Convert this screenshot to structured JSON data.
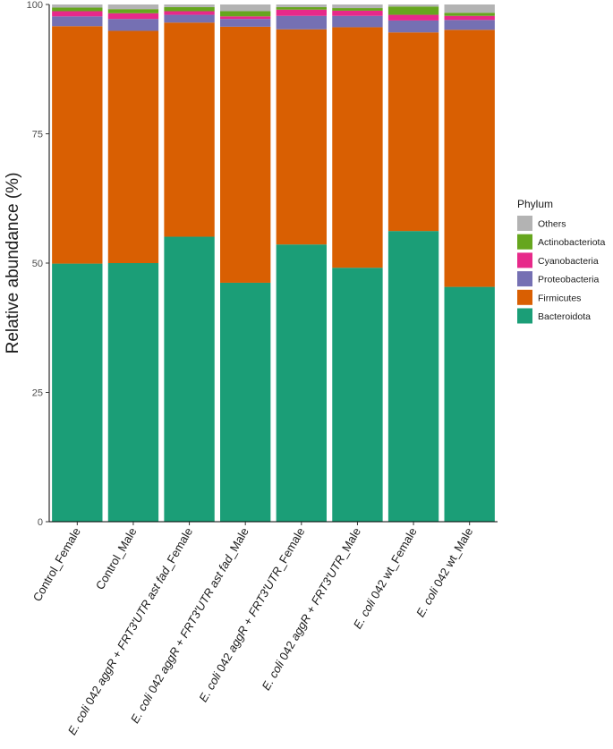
{
  "chart_data": {
    "type": "bar",
    "stacked": true,
    "title": "",
    "xlabel": "",
    "ylabel": "Relative abundance (%)",
    "ylim": [
      0,
      100
    ],
    "yticks": [
      0,
      25,
      50,
      75,
      100
    ],
    "categories": [
      {
        "name": "Control_Female",
        "plain": "Control_Female"
      },
      {
        "name": "Control_Male",
        "plain": "Control_Male"
      },
      {
        "name": "E. coli 042 aggR + FRT3'UTR ast fad_Female",
        "italic": "E. coli",
        "plain": " 042 ",
        "italic2": "aggR",
        "plain2": " + ",
        "italic3": "FRT3'UTR ast fad",
        "plain3": "_Female"
      },
      {
        "name": "E. coli 042 aggR + FRT3'UTR ast fad_Male",
        "italic": "E. coli",
        "plain": " 042 ",
        "italic2": "aggR",
        "plain2": " + ",
        "italic3": "FRT3'UTR ast fad",
        "plain3": "_Male"
      },
      {
        "name": "E. coli 042 aggR + FRT3'UTR_Female",
        "italic": "E. coli",
        "plain": " 042 ",
        "italic2": "aggR",
        "plain2": " + ",
        "italic3": "FRT3'UTR",
        "plain3": "_Female"
      },
      {
        "name": "E. coli 042 aggR + FRT3'UTR_Male",
        "italic": "E. coli",
        "plain": " 042 ",
        "italic2": "aggR",
        "plain2": " + ",
        "italic3": "FRT3'UTR",
        "plain3": "_Male"
      },
      {
        "name": "E. coli 042 wt_Female",
        "italic": "E. coli",
        "plain": " 042 wt_Female"
      },
      {
        "name": "E. coli 042 wt_Male",
        "italic": "E. coli",
        "plain": " 042 wt_Male"
      }
    ],
    "series": [
      {
        "name": "Bacteroidota",
        "color": "#1b9e77",
        "values": [
          49.9,
          50.0,
          55.1,
          46.2,
          53.6,
          49.1,
          56.2,
          45.4
        ]
      },
      {
        "name": "Firmicutes",
        "color": "#d95f02",
        "values": [
          45.9,
          44.9,
          41.4,
          49.5,
          41.6,
          46.5,
          38.4,
          49.7
        ]
      },
      {
        "name": "Proteobacteria",
        "color": "#7570b3",
        "values": [
          1.9,
          2.3,
          1.5,
          1.5,
          2.6,
          2.2,
          2.3,
          1.9
        ]
      },
      {
        "name": "Cyanobacteria",
        "color": "#e7298a",
        "values": [
          1.0,
          1.1,
          0.7,
          0.5,
          1.2,
          1.0,
          1.1,
          0.8
        ]
      },
      {
        "name": "Actinobacteriota",
        "color": "#66a61e",
        "values": [
          0.7,
          0.8,
          0.8,
          1.0,
          0.5,
          0.5,
          1.6,
          0.6
        ]
      },
      {
        "name": "Others",
        "color": "#b3b3b3",
        "values": [
          0.6,
          0.9,
          0.5,
          1.3,
          0.5,
          0.7,
          0.4,
          1.6
        ]
      }
    ],
    "legend": {
      "title": "Phylum",
      "position": "right",
      "order": [
        "Others",
        "Actinobacteriota",
        "Cyanobacteria",
        "Proteobacteria",
        "Firmicutes",
        "Bacteroidota"
      ]
    }
  }
}
